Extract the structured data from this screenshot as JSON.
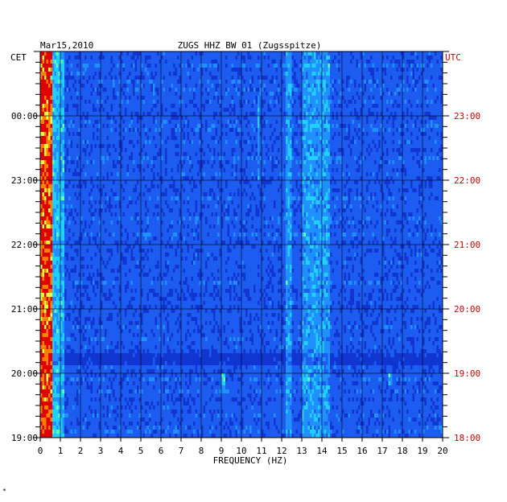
{
  "chart_data": {
    "type": "heatmap",
    "title": "ZUGS HHZ BW 01 (Zugsspitze)",
    "date": "Mar15,2010",
    "xlabel": "FREQUENCY (HZ)",
    "xlim": [
      0,
      20
    ],
    "x_ticks": [
      "0",
      "1",
      "2",
      "3",
      "4",
      "5",
      "6",
      "7",
      "8",
      "9",
      "10",
      "11",
      "12",
      "13",
      "14",
      "15",
      "16",
      "17",
      "18",
      "19",
      "20"
    ],
    "left_axis_label": "CET",
    "right_axis_label": "UTC",
    "left_ticks": [
      "00:00",
      "23:00",
      "22:00",
      "21:00",
      "20:00",
      "19:00"
    ],
    "right_ticks": [
      "23:00",
      "22:00",
      "21:00",
      "20:00",
      "19:00",
      "18:00"
    ],
    "time_span_utc": [
      "18:00",
      "23:40"
    ],
    "rows": 96,
    "colormap": [
      "#1020a0",
      "#1035d0",
      "#1c5cf0",
      "#2090ff",
      "#20d0ff",
      "#60ffb0",
      "#e0ff40",
      "#ff8000",
      "#e00000"
    ],
    "features": [
      {
        "band_hz": [
          0.0,
          0.6
        ],
        "level": "high",
        "desc": "strong low-frequency energy"
      },
      {
        "band_hz": [
          12.2,
          12.5
        ],
        "level": "elevated"
      },
      {
        "band_hz": [
          13.0,
          14.4
        ],
        "level": "elevated"
      },
      {
        "band_hz": [
          10.8,
          10.9
        ],
        "level": "elevated",
        "time_utc": [
          "22:00",
          "23:20"
        ]
      },
      {
        "band_hz": [
          9.0,
          9.2
        ],
        "level": "spot",
        "time_utc": [
          "18:45",
          "19:00"
        ]
      },
      {
        "band_hz": [
          17.3,
          17.5
        ],
        "level": "spot",
        "time_utc": [
          "18:50",
          "19:00"
        ]
      }
    ]
  },
  "corner_mark": "*"
}
